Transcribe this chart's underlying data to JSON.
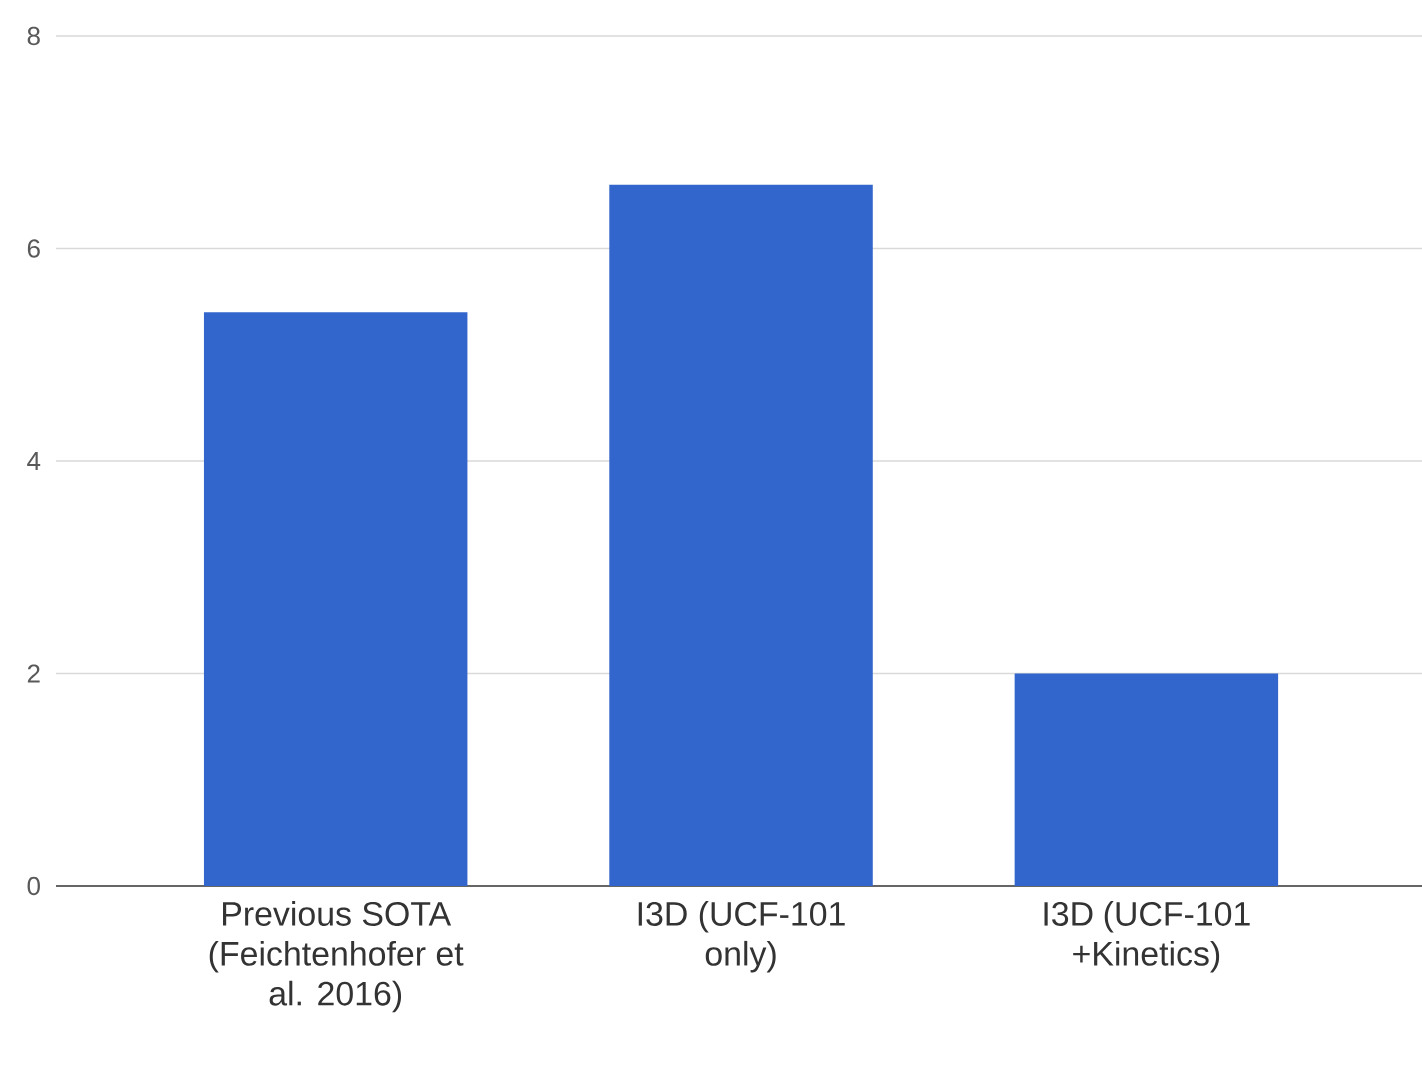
{
  "chart_data": {
    "type": "bar",
    "categories": [
      "Previous SOTA (Feichtenhofer et al. 2016)",
      "I3D (UCF-101 only)",
      "I3D (UCF-101 +Kinetics)"
    ],
    "values": [
      5.4,
      6.6,
      2.0
    ],
    "color": "#3366cc",
    "ylim": [
      0,
      8
    ],
    "yticks": [
      0,
      2,
      4,
      6,
      8
    ],
    "grid": "y"
  }
}
